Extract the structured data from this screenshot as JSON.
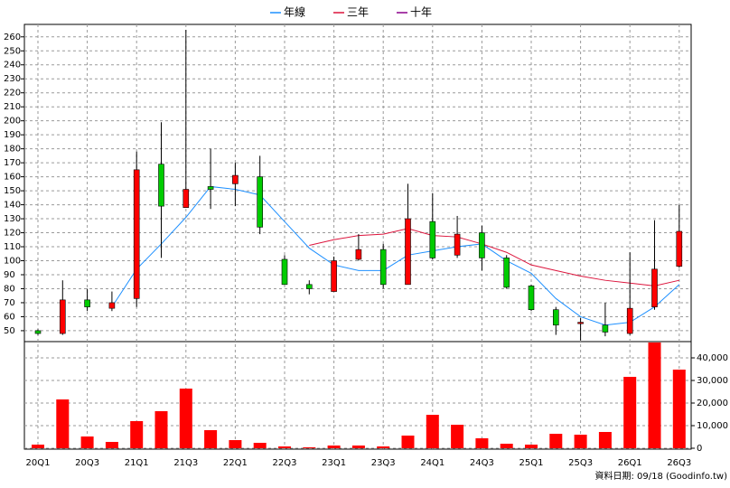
{
  "chart_data": [
    {
      "type": "candlestick",
      "open": [
        50,
        48,
        72,
        66,
        73,
        169,
        138,
        153,
        155,
        160,
        101,
        83,
        78,
        101,
        108,
        83,
        128,
        104,
        120,
        102,
        82,
        65,
        56,
        54,
        48,
        67,
        96
      ],
      "high": [
        51,
        86,
        80,
        78,
        178,
        199,
        265,
        180,
        170,
        175,
        104,
        86,
        103,
        119,
        112,
        155,
        148,
        132,
        125,
        104,
        83,
        67,
        59,
        70,
        106,
        129,
        140
      ],
      "low": [
        47,
        47,
        64,
        64,
        67,
        102,
        138,
        137,
        139,
        119,
        83,
        76,
        78,
        100,
        80,
        83,
        101,
        102,
        93,
        80,
        64,
        47,
        43,
        46,
        47,
        65,
        95
      ],
      "close": [
        48,
        72,
        67,
        70,
        165,
        139,
        151,
        151,
        161,
        124,
        83,
        80,
        100,
        108,
        83,
        130,
        102,
        119,
        102,
        81,
        65,
        54,
        56,
        49,
        66,
        94,
        121
      ],
      "up_color": "#ff0000",
      "down_color": "#00cc00",
      "series": [
        {
          "name": "年線",
          "color": "#1e90ff",
          "values": [
            null,
            null,
            null,
            67,
            94,
            112,
            131,
            153,
            151,
            147,
            128,
            109,
            97,
            93,
            93,
            104,
            107,
            110,
            112,
            100,
            91,
            73,
            60,
            54,
            56,
            67,
            83
          ]
        },
        {
          "name": "三年",
          "color": "#dc143c",
          "values": [
            null,
            null,
            null,
            null,
            null,
            null,
            null,
            null,
            null,
            null,
            null,
            111,
            115,
            118,
            119,
            123,
            118,
            117,
            112,
            106,
            97,
            93,
            89,
            86,
            84,
            82,
            86
          ]
        },
        {
          "name": "十年",
          "color": "#8b008b",
          "values": [
            null,
            null,
            null,
            null,
            null,
            null,
            null,
            null,
            null,
            null,
            null,
            null,
            null,
            null,
            null,
            null,
            null,
            null,
            null,
            null,
            null,
            null,
            null,
            null,
            null,
            null,
            null
          ]
        }
      ],
      "ylim": [
        42.2,
        268.9
      ],
      "yticks": [
        50,
        60,
        70,
        80,
        90,
        100,
        110,
        120,
        130,
        140,
        150,
        160,
        170,
        180,
        190,
        200,
        210,
        220,
        230,
        240,
        250,
        260
      ],
      "grid": true
    },
    {
      "type": "bar",
      "categories": [
        "20Q1",
        null,
        "20Q3",
        null,
        "21Q1",
        null,
        "21Q3",
        null,
        "22Q1",
        null,
        "22Q3",
        null,
        "23Q1",
        null,
        "23Q3",
        null,
        "24Q1",
        null,
        "24Q3",
        null,
        "25Q1",
        null,
        "25Q3",
        null,
        "26Q1",
        null,
        "26Q3"
      ],
      "values": [
        1600,
        21600,
        5200,
        2800,
        12000,
        16400,
        26400,
        8000,
        3600,
        2400,
        800,
        400,
        1200,
        1200,
        800,
        5600,
        14800,
        10400,
        4400,
        2000,
        1600,
        6400,
        6000,
        7200,
        31600,
        46800,
        34800
      ],
      "color": "#ff0000",
      "ylim": [
        0,
        47200
      ],
      "yticks": [
        0,
        {
          "value": 10000,
          "label": "10,000"
        },
        {
          "value": 20000,
          "label": "20,000"
        },
        {
          "value": 30000,
          "label": "30,000"
        },
        {
          "value": 40000,
          "label": "40,000"
        }
      ],
      "grid": true,
      "source": "資料日期: 09/18 (Goodinfo.tw)"
    }
  ]
}
